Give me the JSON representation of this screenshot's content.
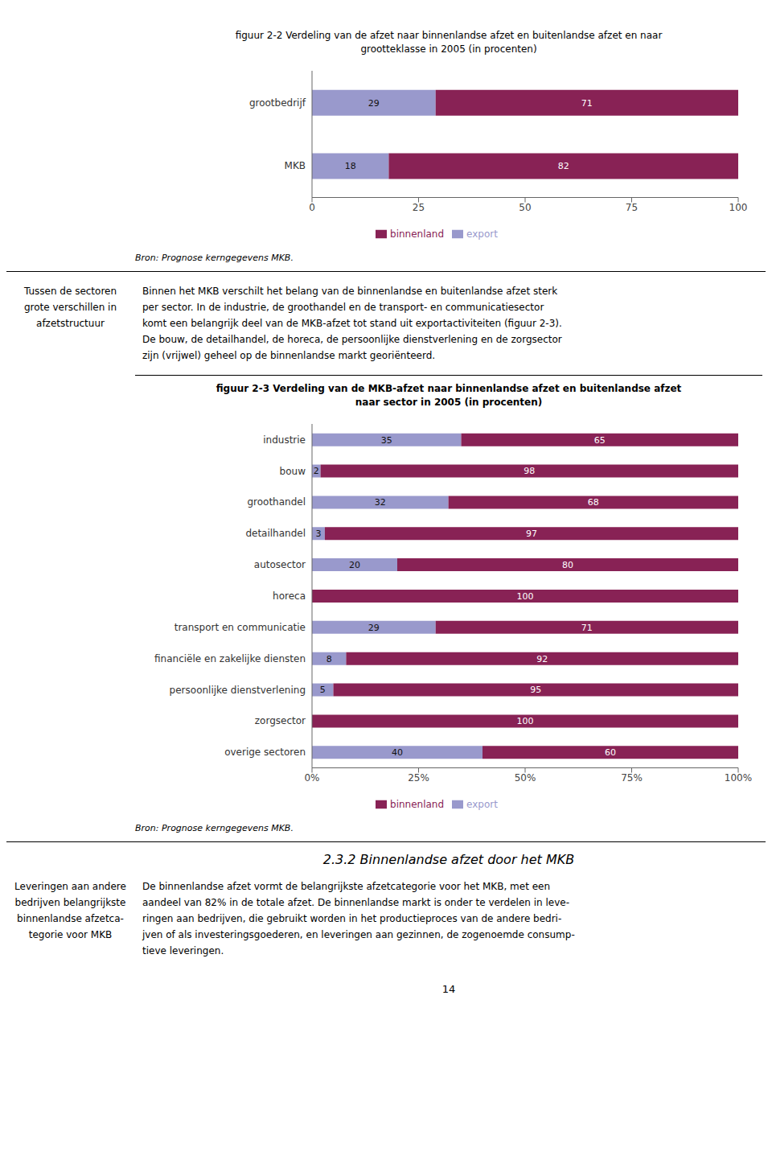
{
  "chart_data": [
    {
      "type": "bar",
      "orientation": "horizontal",
      "stacked": true,
      "data_labels": true,
      "grid": false,
      "legend": "bottom",
      "title": "figuur 2-2   Verdeling van de afzet naar binnenlandse afzet en buitenlandse afzet en naar",
      "subtitle": "grootteklasse in 2005 (in procenten)",
      "annotations": [
        "Bron: Prognose kerngegevens MKB."
      ],
      "categories": [
        "grootbedrijf",
        "MKB"
      ],
      "series": [
        {
          "name": "export",
          "color": "#9999cc",
          "values": [
            29,
            18
          ]
        },
        {
          "name": "binnenland",
          "color": "#882255",
          "values": [
            71,
            82
          ]
        }
      ],
      "xlim": [
        0,
        100
      ],
      "xticks": [
        0,
        25,
        50,
        75,
        100
      ]
    },
    {
      "type": "bar",
      "orientation": "horizontal",
      "stacked": true,
      "data_labels": true,
      "grid": false,
      "legend": "bottom",
      "title": "figuur 2-3   Verdeling van de MKB-afzet naar binnenlandse afzet en buitenlandse afzet",
      "subtitle": "naar sector in 2005 (in procenten)",
      "annotations": [
        "Bron: Prognose kerngegevens MKB."
      ],
      "categories": [
        "industrie",
        "bouw",
        "groothandel",
        "detailhandel",
        "autosector",
        "horeca",
        "transport en communicatie",
        "financiële en zakelijke diensten",
        "persoonlijke dienstverlening",
        "zorgsector",
        "overige sectoren"
      ],
      "series": [
        {
          "name": "export",
          "color": "#9999cc",
          "values": [
            35,
            2,
            32,
            3,
            20,
            0,
            29,
            8,
            5,
            0,
            40
          ],
          "value_labels": [
            "35",
            "2",
            "32",
            "3",
            "20",
            null,
            "29",
            "8",
            "5",
            null,
            "40"
          ]
        },
        {
          "name": "binnenland",
          "color": "#882255",
          "values": [
            65,
            98,
            68,
            97,
            80,
            100,
            71,
            92,
            95,
            100,
            60
          ]
        }
      ],
      "xlim": [
        0,
        100
      ],
      "xticks": [
        {
          "value": 0,
          "label": "0%"
        },
        {
          "value": 25,
          "label": "25%"
        },
        {
          "value": 50,
          "label": "50%"
        },
        {
          "value": 75,
          "label": "75%"
        },
        {
          "value": 100,
          "label": "100%"
        }
      ]
    }
  ],
  "page": {
    "margin_text1": [
      "Tussen de sectoren",
      "grote verschillen in",
      "afzetstructuur"
    ],
    "body_text1": [
      "Binnen het MKB verschilt het belang van de binnenlandse en buitenlandse afzet sterk",
      "per sector. In de industrie, de groothandel en de transport- en communicatiesector",
      "komt een belangrijk deel van de MKB-afzet tot stand uit exportactiviteiten (figuur 2-3).",
      "De bouw, de detailhandel, de horeca, de persoonlijke dienstverlening en de zorgsector",
      "zijn (vrijwel) geheel op de binnenlandse markt georiënteerd."
    ],
    "section_title": "2.3.2   Binnenlandse afzet door het MKB",
    "margin_text2": [
      "Leveringen aan andere",
      "bedrijven belangrijkste",
      "binnenlandse afzetca-",
      "tegorie voor MKB"
    ],
    "body_text2": [
      "De binnenlandse afzet vormt de belangrijkste afzetcategorie voor het MKB, met een",
      "aandeel van 82% in de totale afzet. De binnenlandse markt is onder te verdelen in leve-",
      "ringen aan bedrijven, die gebruikt worden in het productieproces van de andere bedri-",
      "jven of als investeringsgoederen, en leveringen aan gezinnen, de zogenoemde consump-",
      "tieve leveringen."
    ],
    "page_number": "14"
  }
}
